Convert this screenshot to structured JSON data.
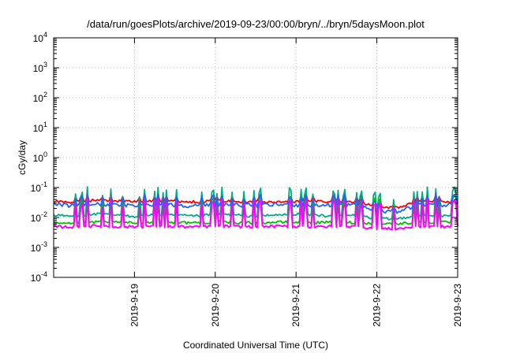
{
  "chart_data": {
    "type": "line",
    "title": "/data/run/goesPlots/archive/2019-09-23/00:00/bryn/../bryn/5daysMoon.plot",
    "xlabel": "Coordinated Universal Time (UTC)",
    "ylabel": "cGy/day",
    "yscale": "log",
    "ylim": [
      0.0001,
      10000
    ],
    "xlim": [
      "2019-09-18 00:00",
      "2019-09-23 00:00"
    ],
    "x_ticks": [
      "2019-9-19",
      "2019-9-20",
      "2019-9-21",
      "2019-9-22",
      "2019-9-23"
    ],
    "y_ticks": [
      {
        "base": "10",
        "exp": "-4"
      },
      {
        "base": "10",
        "exp": "-3"
      },
      {
        "base": "10",
        "exp": "-2"
      },
      {
        "base": "10",
        "exp": "-1"
      },
      {
        "base": "10",
        "exp": "0"
      },
      {
        "base": "10",
        "exp": "1"
      },
      {
        "base": "10",
        "exp": "2"
      },
      {
        "base": "10",
        "exp": "3"
      },
      {
        "base": "10",
        "exp": "4"
      }
    ],
    "grid": true,
    "x": [
      "2019-09-18 00:00",
      "2019-09-18 06:00",
      "2019-09-18 12:00",
      "2019-09-18 18:00",
      "2019-09-19 00:00",
      "2019-09-19 06:00",
      "2019-09-19 12:00",
      "2019-09-19 18:00",
      "2019-09-20 00:00",
      "2019-09-20 06:00",
      "2019-09-20 12:00",
      "2019-09-20 18:00",
      "2019-09-21 00:00",
      "2019-09-21 06:00",
      "2019-09-21 12:00",
      "2019-09-21 18:00",
      "2019-09-22 00:00",
      "2019-09-22 06:00",
      "2019-09-22 12:00",
      "2019-09-22 18:00",
      "2019-09-23 00:00"
    ],
    "series": [
      {
        "color": "#ff0000",
        "values": [
          0.035,
          0.032,
          0.038,
          0.036,
          0.034,
          0.037,
          0.035,
          0.033,
          0.036,
          0.034,
          0.035,
          0.032,
          0.034,
          0.036,
          0.033,
          0.035,
          0.022,
          0.021,
          0.034,
          0.035,
          0.033
        ]
      },
      {
        "color": "#00aa88",
        "values": [
          0.012,
          0.011,
          0.013,
          0.012,
          0.011,
          0.012,
          0.012,
          0.011,
          0.013,
          0.012,
          0.011,
          0.012,
          0.013,
          0.012,
          0.011,
          0.012,
          0.009,
          0.009,
          0.012,
          0.011,
          0.012
        ]
      },
      {
        "color": "#00c000",
        "values": [
          0.007,
          0.0065,
          0.007,
          0.0068,
          0.0066,
          0.007,
          0.0069,
          0.0067,
          0.007,
          0.0068,
          0.0066,
          0.007,
          0.0069,
          0.0067,
          0.007,
          0.0068,
          0.0062,
          0.0062,
          0.0069,
          0.0068,
          0.007
        ]
      },
      {
        "color": "#1e64ff",
        "values": [
          0.027,
          0.025,
          0.028,
          0.026,
          0.025,
          0.027,
          0.026,
          0.025,
          0.028,
          0.026,
          0.025,
          0.027,
          0.026,
          0.025,
          0.027,
          0.026,
          0.016,
          0.016,
          0.026,
          0.027,
          0.026
        ]
      },
      {
        "color": "#ff00ff",
        "values": [
          0.005,
          0.0048,
          0.0052,
          0.005,
          0.0049,
          0.0051,
          0.005,
          0.0048,
          0.0052,
          0.005,
          0.0049,
          0.0051,
          0.005,
          0.0048,
          0.0051,
          0.005,
          0.0042,
          0.0042,
          0.005,
          0.0049,
          0.005
        ]
      }
    ]
  }
}
